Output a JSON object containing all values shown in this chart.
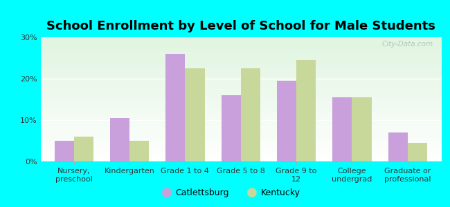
{
  "title": "School Enrollment by Level of School for Male Students",
  "categories": [
    "Nursery,\npreschool",
    "Kindergarten",
    "Grade 1 to 4",
    "Grade 5 to 8",
    "Grade 9 to\n12",
    "College\nundergrad",
    "Graduate or\nprofessional"
  ],
  "catlettsburg": [
    5,
    10.5,
    26,
    16,
    19.5,
    15.5,
    7
  ],
  "kentucky": [
    6,
    5,
    22.5,
    22.5,
    24.5,
    15.5,
    4.5
  ],
  "bar_color_catlettsburg": "#c9a0dc",
  "bar_color_kentucky": "#c8d89a",
  "background_color": "#00ffff",
  "plot_bg_color": "#e8f5e0",
  "ylabel_ticks": [
    "0%",
    "10%",
    "20%",
    "30%"
  ],
  "ytick_vals": [
    0,
    10,
    20,
    30
  ],
  "ylim": [
    0,
    30
  ],
  "legend_labels": [
    "Catlettsburg",
    "Kentucky"
  ],
  "title_fontsize": 13,
  "tick_fontsize": 8,
  "bar_width": 0.35,
  "watermark": "City-Data.com"
}
